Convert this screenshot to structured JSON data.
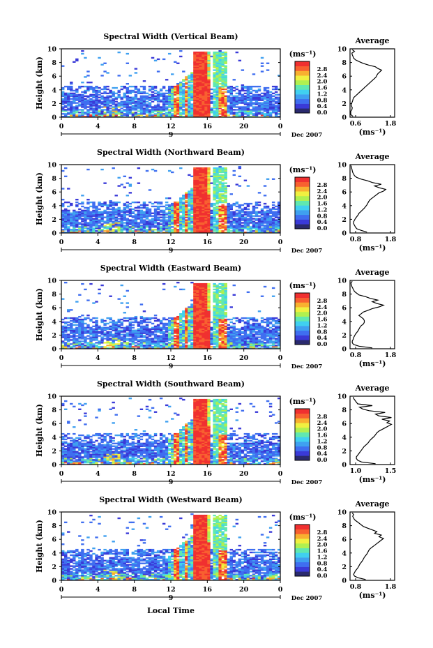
{
  "chart_data": {
    "type": "heatmap",
    "xlabel": "Local Time",
    "date_label": "Dec 2007",
    "x_ticks": [
      "0",
      "4",
      "8",
      "12",
      "16",
      "20",
      "0"
    ],
    "x_range": [
      0,
      24
    ],
    "y_label": "Height (km)",
    "y_ticks": [
      "0",
      "2",
      "4",
      "6",
      "8",
      "10"
    ],
    "y_range": [
      0,
      10
    ],
    "day_marker": "9",
    "colorbar": {
      "unit": "(ms⁻¹)",
      "labels": [
        "0.0",
        "0.4",
        "0.8",
        "1.2",
        "1.6",
        "2.0",
        "2.4",
        "2.8"
      ],
      "colors": [
        "#2a2a6e",
        "#3a3ad8",
        "#3f6ef0",
        "#3fa0f0",
        "#40d0f0",
        "#60e8b0",
        "#b0f050",
        "#f0f040",
        "#f8b030",
        "#f86030",
        "#f03030"
      ]
    },
    "panels": [
      {
        "title": "Spectral Width (Vertical Beam)",
        "avg": {
          "title": "Average",
          "xlabel": "(ms⁻¹)",
          "xlim": [
            0.6,
            1.8
          ],
          "xticks": [
            "0.6",
            "1.8"
          ],
          "profile": [
            0.68,
            0.62,
            0.6,
            0.62,
            0.65,
            0.66,
            0.64,
            0.63,
            0.65,
            0.67,
            0.68,
            0.7,
            0.75,
            0.8,
            0.85,
            0.9,
            0.95,
            1.0,
            1.05,
            1.1,
            1.15,
            1.2,
            1.25,
            1.3,
            1.32,
            1.35,
            1.4,
            1.45,
            1.35,
            1.28,
            1.1,
            0.95,
            0.85,
            0.75,
            0.7,
            0.68,
            0.66,
            0.65,
            0.72,
            0.66
          ]
        }
      },
      {
        "title": "Spectral Width (Northward Beam)",
        "avg": {
          "title": "Average",
          "xlabel": "(ms⁻¹)",
          "xlim": [
            0.8,
            1.8
          ],
          "xticks": [
            "0.8",
            "1.8"
          ],
          "profile": [
            1.18,
            1.05,
            0.95,
            0.92,
            0.9,
            0.88,
            0.88,
            0.9,
            0.92,
            0.95,
            0.98,
            1.0,
            1.04,
            1.08,
            1.12,
            1.15,
            1.18,
            1.2,
            1.22,
            1.25,
            1.3,
            1.35,
            1.4,
            1.45,
            1.55,
            1.6,
            1.45,
            1.35,
            1.5,
            1.3,
            1.2,
            1.05,
            0.95,
            0.9,
            0.88,
            0.86,
            0.85,
            0.84,
            0.83,
            0.82
          ]
        }
      },
      {
        "title": "Spectral Width (Eastward Beam)",
        "avg": {
          "title": "Average",
          "xlabel": "(ms⁻¹)",
          "xlim": [
            0.8,
            1.8
          ],
          "xticks": [
            "0.8",
            "1.8"
          ],
          "profile": [
            1.3,
            1.0,
            0.88,
            0.85,
            0.85,
            0.87,
            0.88,
            0.9,
            0.92,
            0.95,
            0.98,
            1.0,
            1.02,
            1.05,
            1.1,
            1.12,
            1.12,
            1.1,
            1.05,
            1.0,
            1.05,
            1.1,
            1.2,
            1.3,
            1.45,
            1.55,
            1.4,
            1.3,
            1.42,
            1.25,
            1.15,
            1.0,
            0.95,
            0.9,
            0.88,
            0.86,
            0.84,
            0.83,
            0.82,
            0.85
          ]
        }
      },
      {
        "title": "Spectral Width (Southward Beam)",
        "avg": {
          "title": "Average",
          "xlabel": "(ms⁻¹)",
          "xlim": [
            0.8,
            1.5
          ],
          "xticks": [
            "1.0",
            "1.5"
          ],
          "profile": [
            1.2,
            0.98,
            0.92,
            0.9,
            0.9,
            0.92,
            0.94,
            0.96,
            0.98,
            1.0,
            1.02,
            1.05,
            1.08,
            1.1,
            1.12,
            1.15,
            1.18,
            1.2,
            1.22,
            1.25,
            1.3,
            1.35,
            1.4,
            1.45,
            1.38,
            1.42,
            1.3,
            1.45,
            1.25,
            1.2,
            1.35,
            1.1,
            1.0,
            0.95,
            1.15,
            0.92,
            0.9,
            0.88,
            0.86,
            0.85
          ]
        }
      },
      {
        "title": "Spectral Width (Westward Beam)",
        "avg": {
          "title": "Average",
          "xlabel": "(ms⁻¹)",
          "xlim": [
            0.8,
            1.8
          ],
          "xticks": [
            "0.8",
            "1.8"
          ],
          "profile": [
            1.15,
            0.98,
            0.9,
            0.88,
            0.9,
            0.92,
            0.95,
            0.98,
            1.0,
            1.02,
            1.05,
            1.08,
            1.1,
            1.12,
            1.15,
            1.18,
            1.2,
            1.22,
            1.25,
            1.3,
            1.35,
            1.4,
            1.45,
            1.5,
            1.55,
            1.45,
            1.5,
            1.35,
            1.4,
            1.3,
            1.2,
            1.1,
            1.05,
            1.0,
            0.95,
            0.9,
            0.88,
            0.86,
            0.88,
            0.85
          ]
        }
      }
    ]
  }
}
